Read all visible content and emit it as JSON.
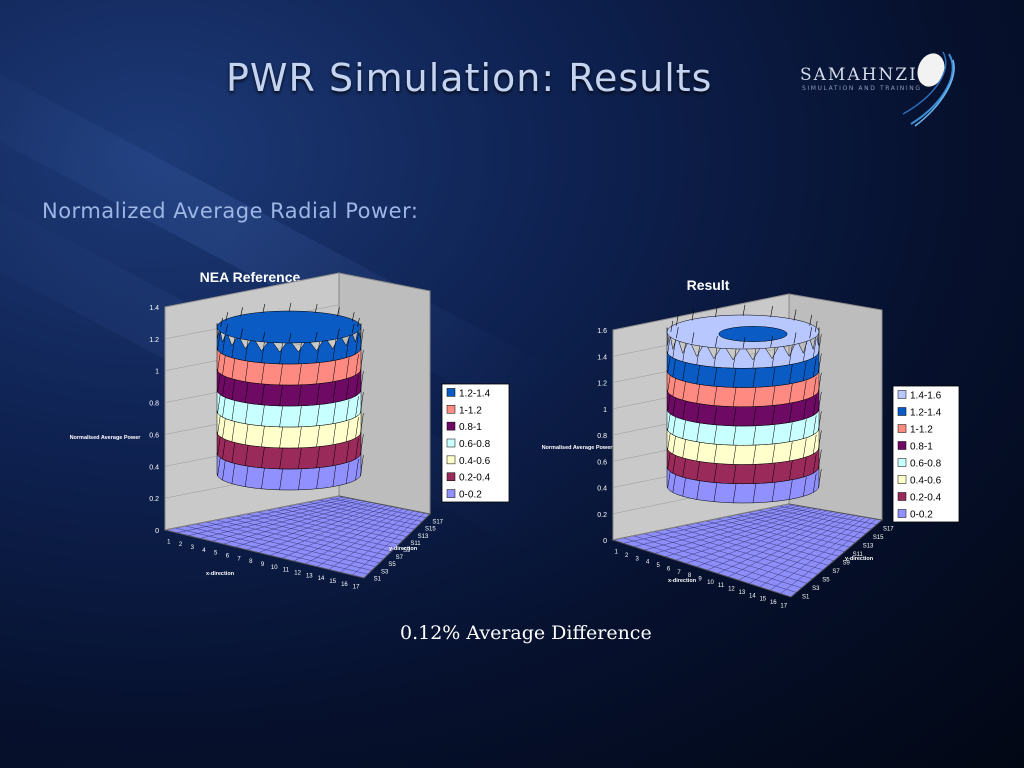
{
  "slide": {
    "title": "PWR Simulation: Results",
    "subtitle": "Normalized Average Radial Power:",
    "footer": "0.12% Average Difference",
    "logo": {
      "name": "SAMAHNZI",
      "tagline": "SIMULATION AND TRAINING"
    }
  },
  "chart_data": [
    {
      "type": "surface",
      "title": "NEA Reference",
      "zlabel": "Normalised Average Power",
      "xlabel": "x-direction",
      "ylabel": "y-direction",
      "zlim": [
        0,
        1.4
      ],
      "z_ticks": [
        "0",
        "0.2",
        "0.4",
        "0.6",
        "0.8",
        "1",
        "1.2",
        "1.4"
      ],
      "x_ticks": [
        "1",
        "2",
        "3",
        "4",
        "5",
        "6",
        "7",
        "8",
        "9",
        "10",
        "11",
        "12",
        "13",
        "14",
        "15",
        "16",
        "17"
      ],
      "y_ticks": [
        "S1",
        "S3",
        "S5",
        "S7",
        "S9",
        "S11",
        "S13",
        "S15",
        "S17"
      ],
      "legend": [
        "1.2-1.4",
        "1-1.2",
        "0.8-1",
        "0.6-0.8",
        "0.4-0.6",
        "0.2-0.4",
        "0-0.2"
      ],
      "band_colors": [
        "#0a5bc4",
        "#ff8a82",
        "#6e0a64",
        "#c8ffff",
        "#ffffcc",
        "#9a2a5a",
        "#9090ff"
      ]
    },
    {
      "type": "surface",
      "title": "Result",
      "zlabel": "Normalised Average Power",
      "xlabel": "x-direction",
      "ylabel": "y-direction",
      "zlim": [
        0,
        1.6
      ],
      "z_ticks": [
        "0",
        "0.2",
        "0.4",
        "0.6",
        "0.8",
        "1",
        "1.2",
        "1.4",
        "1.6"
      ],
      "x_ticks": [
        "1",
        "2",
        "3",
        "4",
        "5",
        "6",
        "7",
        "8",
        "9",
        "10",
        "11",
        "12",
        "13",
        "14",
        "15",
        "16",
        "17"
      ],
      "y_ticks": [
        "S1",
        "S3",
        "S5",
        "S7",
        "S9",
        "S11",
        "S13",
        "S15",
        "S17"
      ],
      "legend": [
        "1.4-1.6",
        "1.2-1.4",
        "1-1.2",
        "0.8-1",
        "0.6-0.8",
        "0.4-0.6",
        "0.2-0.4",
        "0-0.2"
      ],
      "band_colors": [
        "#b8c8ff",
        "#0a5bc4",
        "#ff8a82",
        "#6e0a64",
        "#c8ffff",
        "#ffffcc",
        "#9a2a5a",
        "#9090ff"
      ]
    }
  ]
}
